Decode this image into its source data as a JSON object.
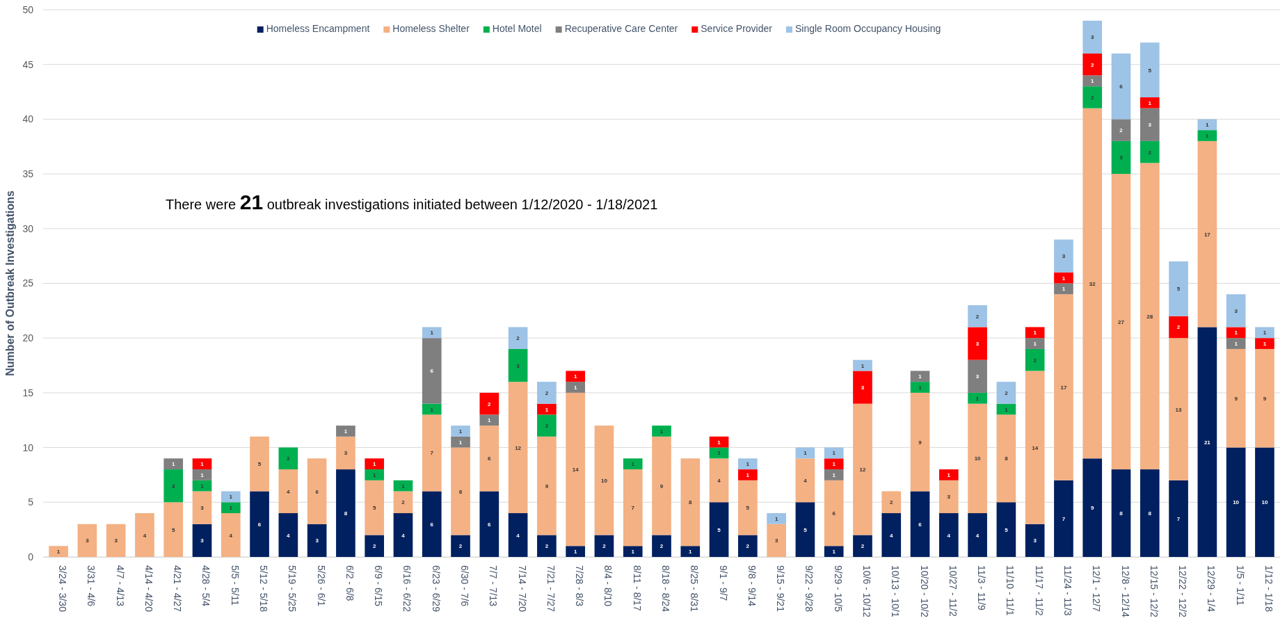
{
  "chart_data": {
    "type": "bar",
    "stacked": true,
    "ylabel": "Number of Outbreak Investigations",
    "categories": [
      "3/24 - 3/30",
      "3/31 - 4/6",
      "4/7 - 4/13",
      "4/14 - 4/20",
      "4/21 - 4/27",
      "4/28 - 5/4",
      "5/5 - 5/11",
      "5/12 - 5/18",
      "5/19 - 5/25",
      "5/26 - 6/1",
      "6/2 - 6/8",
      "6/9 - 6/15",
      "6/16 - 6/22",
      "6/23 - 6/29",
      "6/30 - 7/6",
      "7/7 - 7/13",
      "7/14 - 7/20",
      "7/21 - 7/27",
      "7/28 - 8/3",
      "8/4 - 8/10",
      "8/11 - 8/17",
      "8/18 - 8/24",
      "8/25 - 8/31",
      "9/1 - 9/7",
      "9/8 - 9/14",
      "9/15 - 9/21",
      "9/22 - 9/28",
      "9/29 - 10/5",
      "10/6 - 10/12",
      "10/13 - 10/1",
      "10/20 - 10/2",
      "10/27 - 11/2",
      "11/3 - 11/9",
      "11/10 - 11/1",
      "11/17 - 11/2",
      "11/24 - 11/3",
      "12/1 - 12/7",
      "12/8 - 12/14",
      "12/15 - 12/2",
      "12/22 - 12/2",
      "12/29 - 1/4",
      "1/5 - 1/11",
      "1/12 - 1/18"
    ],
    "series": [
      {
        "name": "Homeless Encampment",
        "color": "#002060",
        "values": [
          null,
          null,
          null,
          null,
          null,
          3,
          null,
          6,
          4,
          3,
          8,
          2,
          4,
          6,
          2,
          6,
          4,
          2,
          1,
          2,
          1,
          2,
          1,
          5,
          2,
          null,
          5,
          1,
          2,
          4,
          6,
          4,
          4,
          5,
          3,
          7,
          9,
          8,
          8,
          7,
          21,
          10,
          10
        ]
      },
      {
        "name": "Homeless Shelter",
        "color": "#f4b183",
        "values": [
          1,
          3,
          3,
          4,
          5,
          3,
          4,
          5,
          4,
          6,
          3,
          5,
          2,
          7,
          8,
          6,
          12,
          9,
          14,
          10,
          7,
          9,
          8,
          4,
          5,
          3,
          4,
          6,
          12,
          2,
          9,
          3,
          10,
          8,
          14,
          17,
          32,
          27,
          28,
          13,
          17,
          9,
          9
        ]
      },
      {
        "name": "Hotel Motel",
        "color": "#00b050",
        "values": [
          null,
          null,
          null,
          null,
          3,
          1,
          1,
          null,
          2,
          null,
          null,
          1,
          1,
          1,
          null,
          null,
          3,
          2,
          null,
          null,
          1,
          1,
          null,
          1,
          null,
          null,
          null,
          null,
          null,
          null,
          1,
          null,
          1,
          1,
          2,
          null,
          2,
          3,
          2,
          null,
          1,
          null,
          null
        ]
      },
      {
        "name": "Recuperative Care Center",
        "color": "#7f7f7f",
        "values": [
          null,
          null,
          null,
          null,
          1,
          1,
          null,
          null,
          null,
          null,
          1,
          null,
          null,
          6,
          1,
          1,
          null,
          null,
          1,
          null,
          null,
          null,
          null,
          null,
          null,
          null,
          null,
          1,
          null,
          null,
          1,
          null,
          3,
          null,
          1,
          1,
          1,
          2,
          3,
          null,
          null,
          1,
          null
        ]
      },
      {
        "name": "Service Provider",
        "color": "#ff0000",
        "values": [
          null,
          null,
          null,
          null,
          null,
          1,
          null,
          null,
          null,
          null,
          null,
          1,
          null,
          null,
          null,
          2,
          null,
          1,
          1,
          null,
          null,
          null,
          null,
          1,
          1,
          null,
          null,
          1,
          3,
          null,
          null,
          1,
          3,
          null,
          1,
          1,
          2,
          null,
          1,
          2,
          null,
          1,
          1
        ]
      },
      {
        "name": "Single Room Occupancy Housing",
        "color": "#9dc3e6",
        "values": [
          null,
          null,
          null,
          null,
          null,
          null,
          1,
          null,
          null,
          null,
          null,
          null,
          null,
          1,
          1,
          null,
          2,
          2,
          null,
          null,
          null,
          null,
          null,
          null,
          1,
          1,
          1,
          1,
          1,
          null,
          null,
          null,
          2,
          2,
          null,
          3,
          3,
          6,
          5,
          5,
          1,
          3,
          1
        ]
      }
    ],
    "ylim": [
      0,
      50
    ],
    "yticks": [
      0,
      5,
      10,
      15,
      20,
      25,
      30,
      35,
      40,
      45,
      50
    ],
    "grid": "y",
    "legend": "top",
    "data_labels": true,
    "annotations": [
      "There were 21 outbreak investigations initiated between 1/12/2020 - 1/18/2021"
    ]
  }
}
